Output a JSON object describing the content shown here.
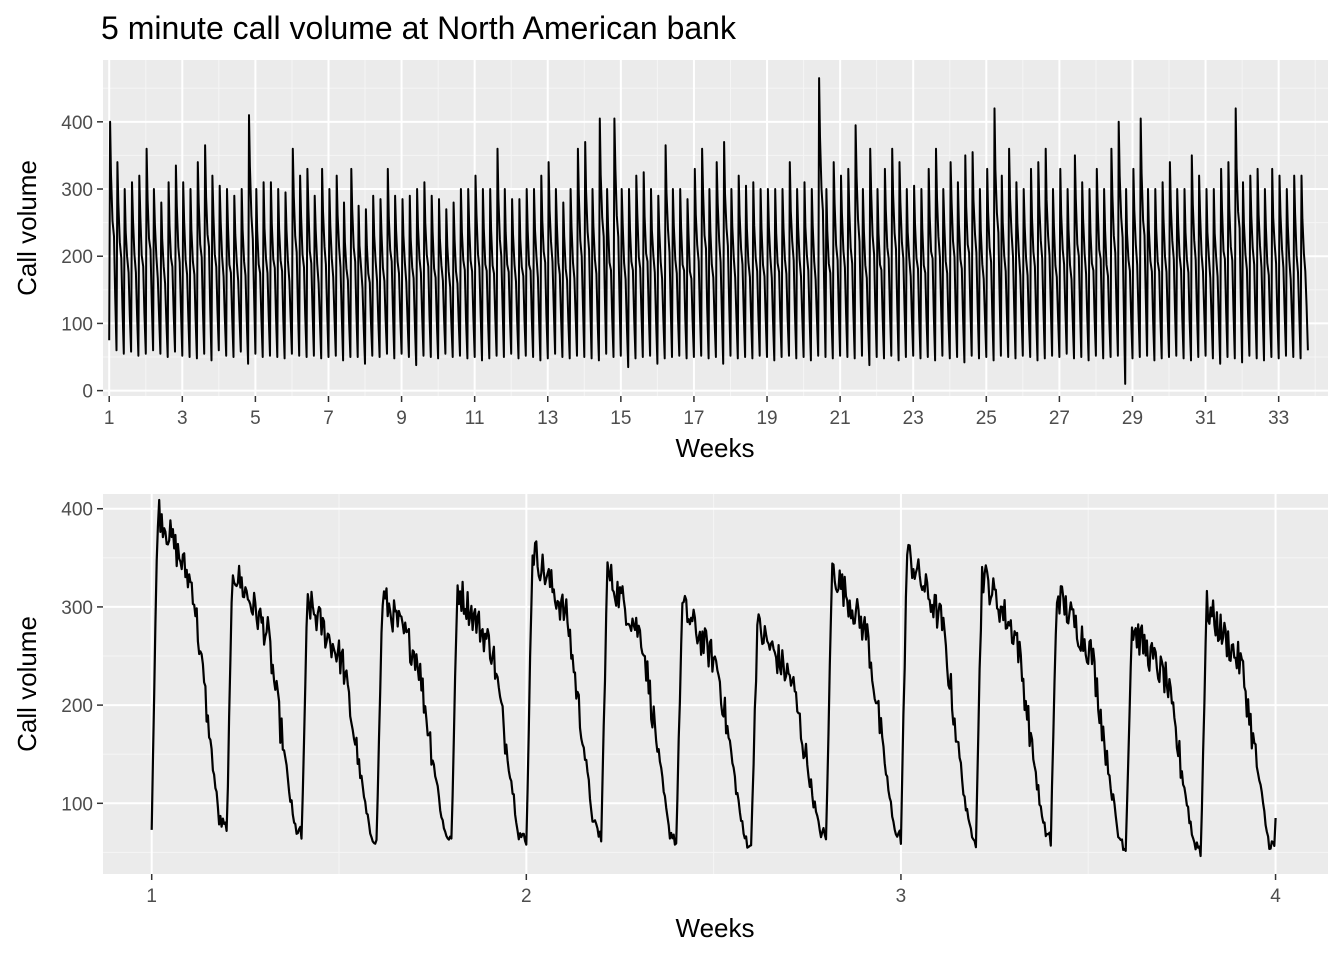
{
  "title": "5 minute call volume at North American bank",
  "chart_data": [
    {
      "type": "line",
      "xlabel": "Weeks",
      "ylabel": "Call volume",
      "xlim": [
        0.83,
        34.35
      ],
      "ylim": [
        -8,
        492
      ],
      "x_ticks": [
        1,
        3,
        5,
        7,
        9,
        11,
        13,
        15,
        17,
        19,
        21,
        23,
        25,
        27,
        29,
        31,
        33
      ],
      "y_ticks": [
        0,
        100,
        200,
        300,
        400
      ],
      "grid": true,
      "x_range": [
        1,
        33.8
      ],
      "weekly_cycles": 164,
      "day_peaks": [
        400,
        340,
        300,
        310,
        320,
        360,
        300,
        280,
        310,
        335,
        310,
        300,
        340,
        365,
        320,
        305,
        300,
        290,
        300,
        410,
        300,
        310,
        310,
        300,
        295,
        360,
        320,
        330,
        290,
        330,
        300,
        320,
        280,
        330,
        275,
        270,
        290,
        285,
        330,
        290,
        285,
        290,
        300,
        310,
        290,
        285,
        270,
        280,
        300,
        300,
        320,
        300,
        300,
        360,
        300,
        285,
        285,
        300,
        300,
        320,
        340,
        300,
        280,
        300,
        360,
        370,
        300,
        405,
        300,
        405,
        300,
        300,
        320,
        325,
        300,
        290,
        365,
        300,
        300,
        285,
        330,
        360,
        300,
        340,
        370,
        300,
        320,
        305,
        310,
        300,
        300,
        300,
        300,
        340,
        300,
        310,
        300,
        465,
        300,
        340,
        320,
        330,
        395,
        300,
        360,
        300,
        330,
        360,
        340,
        300,
        305,
        300,
        330,
        360,
        300,
        340,
        310,
        350,
        355,
        300,
        330,
        420,
        320,
        360,
        310,
        300,
        330,
        340,
        360,
        300,
        330,
        300,
        350,
        310,
        300,
        330,
        300,
        360,
        400,
        300,
        330,
        405,
        300,
        300,
        310,
        340,
        300,
        300,
        350,
        320,
        300,
        300,
        330,
        340,
        420,
        310,
        320,
        330,
        300,
        330,
        320,
        300,
        320,
        320
      ],
      "day_troughs": [
        75,
        60,
        55,
        58,
        52,
        55,
        60,
        55,
        50,
        58,
        52,
        50,
        48,
        55,
        45,
        60,
        52,
        50,
        58,
        40,
        55,
        50,
        52,
        50,
        48,
        55,
        52,
        50,
        52,
        48,
        50,
        52,
        45,
        50,
        50,
        40,
        52,
        50,
        55,
        48,
        55,
        50,
        38,
        52,
        50,
        48,
        55,
        50,
        52,
        48,
        50,
        45,
        48,
        52,
        50,
        55,
        48,
        52,
        50,
        45,
        48,
        55,
        50,
        48,
        52,
        50,
        48,
        45,
        55,
        50,
        52,
        35,
        48,
        50,
        52,
        40,
        48,
        50,
        52,
        48,
        50,
        52,
        48,
        50,
        40,
        52,
        48,
        50,
        48,
        52,
        50,
        45,
        50,
        52,
        48,
        50,
        45,
        52,
        50,
        48,
        52,
        50,
        48,
        52,
        38,
        50,
        48,
        52,
        45,
        50,
        52,
        48,
        50,
        45,
        52,
        48,
        50,
        42,
        52,
        48,
        50,
        45,
        52,
        50,
        48,
        52,
        50,
        45,
        48,
        52,
        50,
        55,
        48,
        50,
        45,
        52,
        48,
        50,
        52,
        10,
        48,
        50,
        52,
        45,
        48,
        50,
        52,
        48,
        45,
        50,
        52,
        48,
        40,
        50,
        48,
        42,
        52,
        48,
        45,
        50,
        48,
        52,
        50,
        48
      ]
    },
    {
      "type": "line",
      "xlabel": "Weeks",
      "ylabel": "Call volume",
      "xlim": [
        0.87,
        4.14
      ],
      "ylim": [
        28,
        415
      ],
      "x_ticks": [
        1,
        2,
        3,
        4
      ],
      "y_ticks": [
        100,
        200,
        300,
        400
      ],
      "grid": true,
      "x_range": [
        1,
        4
      ],
      "day_peaks": [
        400,
        340,
        305,
        310,
        320,
        360,
        335,
        300,
        280,
        340,
        355,
        335,
        315,
        280,
        300
      ],
      "day_troughs": [
        75,
        68,
        62,
        58,
        58,
        55,
        62,
        58,
        52,
        60,
        62,
        62,
        60,
        52,
        48
      ]
    }
  ]
}
